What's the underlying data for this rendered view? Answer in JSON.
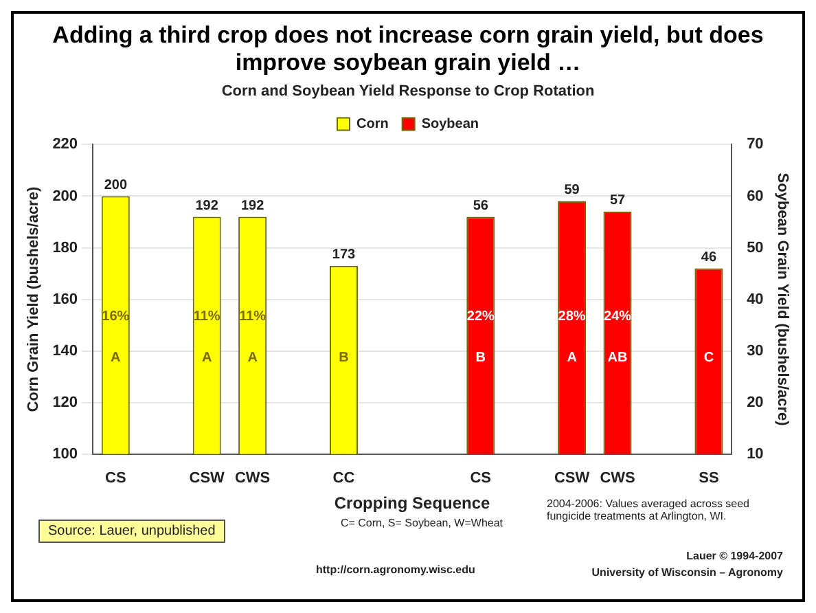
{
  "chart_data": {
    "type": "bar",
    "title": "Adding a third crop does not increase corn grain yield, but does improve soybean grain yield …",
    "subtitle": "Corn and Soybean Yield Response to Crop Rotation",
    "categories": [
      "CS",
      null,
      "CSW",
      "CWS",
      null,
      "CC",
      null,
      null,
      "CS",
      null,
      "CSW",
      "CWS",
      null,
      "SS"
    ],
    "series": [
      {
        "name": "Corn",
        "color": "#ffff00",
        "values": [
          200,
          null,
          192,
          192,
          null,
          173,
          null,
          null,
          null,
          null,
          null,
          null,
          null,
          null
        ]
      },
      {
        "name": "Soybean",
        "color": "#ff0000",
        "axis": "y2",
        "values": [
          null,
          null,
          null,
          null,
          null,
          null,
          null,
          null,
          56,
          null,
          59,
          57,
          null,
          46
        ]
      }
    ],
    "xlabel": "Cropping Sequence",
    "ylabel": "Corn Grain Yield (bushels/acre)",
    "y2label": "Soybean Grain Yield (bushels/acre)",
    "ylim": [
      100,
      220
    ],
    "yticks": [
      100,
      120,
      140,
      160,
      180,
      200,
      220
    ],
    "y2lim": [
      10,
      70
    ],
    "y2ticks": [
      10,
      20,
      30,
      40,
      50,
      60,
      70
    ],
    "grid": "y",
    "legend": "top",
    "data_labels": true,
    "annotations": [
      "16%\nA",
      "11%\nA",
      "11%\nA",
      "B",
      "22%\nB",
      "28%\nA",
      "24%\nAB",
      "C",
      "C= Corn, S= Soybean, W=Wheat",
      "2004-2006: Values averaged across seed fungicide treatments at Arlington, WI.",
      "Source: Lauer, unpublished",
      "http://corn.agronomy.wisc.edu",
      "Lauer © 1994-2007",
      "University of Wisconsin – Agronomy"
    ]
  }
}
